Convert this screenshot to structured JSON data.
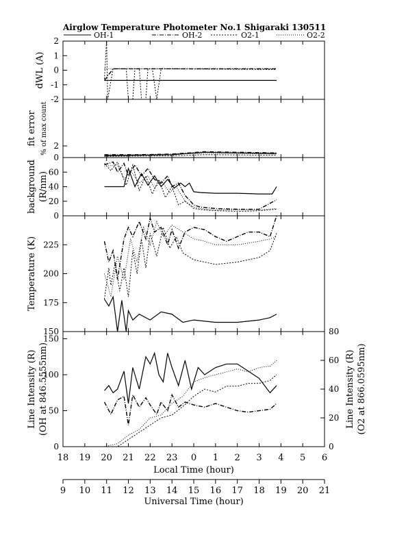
{
  "title": "Airglow Temperature Photometer No.1  Shigaraki   130511",
  "legend": [
    {
      "label": "OH-1",
      "dash": ""
    },
    {
      "label": "OH-2",
      "dash": "6,2,1,2"
    },
    {
      "label": "O2-1",
      "dash": "2,2"
    },
    {
      "label": "O2-2",
      "dash": "1,2"
    }
  ],
  "x_local": {
    "title": "Local Time (hour)",
    "ticks": [
      "18",
      "19",
      "20",
      "21",
      "22",
      "23",
      "0",
      "1",
      "2",
      "3",
      "4",
      "5",
      "6"
    ]
  },
  "x_universal": {
    "title": "Universal Time (hour)",
    "ticks": [
      "9",
      "10",
      "11",
      "12",
      "13",
      "14",
      "15",
      "16",
      "17",
      "18",
      "19",
      "20",
      "21"
    ]
  },
  "panels": [
    {
      "id": "dwl",
      "ylabel": "dWL (A)",
      "ylim": [
        -2,
        2
      ],
      "yticks": [
        "2",
        "1",
        "0",
        "-1",
        "-2"
      ]
    },
    {
      "id": "fiterr",
      "ylabel": "fit error",
      "ylabel2": "% of max count",
      "ylim": [
        0,
        10
      ],
      "yticks": [
        "2",
        "0"
      ]
    },
    {
      "id": "bg",
      "ylabel": "background",
      "ylabel2": "(R/nm)",
      "ylim": [
        0,
        80
      ],
      "yticks": [
        "60",
        "40",
        "20",
        "0"
      ]
    },
    {
      "id": "temp",
      "ylabel": "Temperature (K)",
      "ylim": [
        150,
        250
      ],
      "yticks": [
        "225",
        "200",
        "175",
        "150"
      ]
    },
    {
      "id": "int",
      "ylabel": "Line Intensity (R)",
      "ylabel2": "(OH at 846.5555nm)",
      "ylim": [
        0,
        160
      ],
      "yticks": [
        "150",
        "100",
        "50",
        "0"
      ],
      "ylabel_right": "Line Intensity (R)",
      "ylabel_right2": "(O2 at 866.0595nm)",
      "ylim_right": [
        0,
        80
      ],
      "yticks_right": [
        "80",
        "60",
        "40",
        "20",
        "0"
      ]
    }
  ],
  "chart_data": {
    "type": "line",
    "x_unit": "Local Time (hour)",
    "xlim": [
      18,
      30
    ],
    "series_names": [
      "OH-1",
      "OH-2",
      "O2-1",
      "O2-2"
    ],
    "dwl": {
      "OH-1": [
        [
          19.9,
          -0.7
        ],
        [
          27.8,
          -0.7
        ]
      ],
      "OH-2": [
        [
          19.9,
          -0.7
        ],
        [
          20.3,
          0.1
        ],
        [
          27.8,
          0.1
        ]
      ],
      "O2-1": [
        [
          19.9,
          -0.6
        ],
        [
          20.0,
          2
        ],
        [
          20.05,
          -2
        ],
        [
          20.3,
          0.1
        ],
        [
          20.9,
          0.1
        ],
        [
          21.0,
          -2
        ],
        [
          21.2,
          -2
        ],
        [
          21.3,
          0.1
        ],
        [
          21.5,
          0.1
        ],
        [
          21.6,
          -2
        ],
        [
          21.8,
          -2
        ],
        [
          21.9,
          0.1
        ],
        [
          22.1,
          0.1
        ],
        [
          22.3,
          -2
        ],
        [
          22.5,
          0.1
        ],
        [
          27.8,
          0.05
        ]
      ],
      "O2-2": [
        [
          19.9,
          0.1
        ],
        [
          27.8,
          0.1
        ]
      ]
    },
    "fiterr": {
      "OH-1": [
        [
          19.9,
          0.3
        ],
        [
          21.5,
          0.4
        ],
        [
          23.0,
          0.5
        ],
        [
          24.5,
          0.9
        ],
        [
          26.0,
          0.8
        ],
        [
          27.8,
          0.7
        ]
      ],
      "OH-2": [
        [
          19.9,
          0.5
        ],
        [
          21.5,
          0.5
        ],
        [
          23.0,
          0.6
        ],
        [
          24.5,
          1.0
        ],
        [
          26.0,
          0.9
        ],
        [
          27.8,
          0.8
        ]
      ],
      "O2-1": [
        [
          19.9,
          0.2
        ],
        [
          23.0,
          0.3
        ],
        [
          24.5,
          0.5
        ],
        [
          27.8,
          0.4
        ]
      ],
      "O2-2": [
        [
          19.9,
          0.4
        ],
        [
          22.0,
          0.5
        ],
        [
          24.0,
          0.7
        ],
        [
          26.0,
          0.7
        ],
        [
          27.8,
          0.6
        ]
      ]
    },
    "bg": {
      "OH-1": [
        [
          19.9,
          40
        ],
        [
          20.8,
          40
        ],
        [
          21.0,
          65
        ],
        [
          21.3,
          40
        ],
        [
          21.6,
          58
        ],
        [
          21.9,
          42
        ],
        [
          22.2,
          55
        ],
        [
          22.5,
          40
        ],
        [
          22.8,
          50
        ],
        [
          23.1,
          38
        ],
        [
          23.4,
          45
        ],
        [
          23.6,
          40
        ],
        [
          23.8,
          45
        ],
        [
          24.0,
          33
        ],
        [
          24.3,
          32
        ],
        [
          25,
          31
        ],
        [
          26,
          31
        ],
        [
          27,
          30
        ],
        [
          27.6,
          30
        ],
        [
          27.8,
          40
        ]
      ],
      "OH-2": [
        [
          19.9,
          70
        ],
        [
          20.3,
          74
        ],
        [
          20.5,
          60
        ],
        [
          20.8,
          72
        ],
        [
          21.0,
          55
        ],
        [
          21.3,
          70
        ],
        [
          21.6,
          55
        ],
        [
          21.9,
          65
        ],
        [
          22.2,
          50
        ],
        [
          22.5,
          45
        ],
        [
          22.8,
          55
        ],
        [
          23.0,
          40
        ],
        [
          23.3,
          45
        ],
        [
          23.6,
          28
        ],
        [
          24.0,
          15
        ],
        [
          24.3,
          12
        ],
        [
          25,
          10
        ],
        [
          26,
          9
        ],
        [
          27,
          9
        ],
        [
          27.8,
          22
        ]
      ],
      "O2-1": [
        [
          19.9,
          72
        ],
        [
          20.2,
          62
        ],
        [
          20.5,
          74
        ],
        [
          20.9,
          42
        ],
        [
          21.2,
          70
        ],
        [
          21.5,
          35
        ],
        [
          21.8,
          55
        ],
        [
          22.1,
          30
        ],
        [
          22.4,
          50
        ],
        [
          22.7,
          25
        ],
        [
          23.0,
          40
        ],
        [
          23.3,
          15
        ],
        [
          23.6,
          20
        ],
        [
          24.0,
          10
        ],
        [
          24.5,
          8
        ],
        [
          25,
          7
        ],
        [
          26,
          6
        ],
        [
          27,
          7
        ],
        [
          27.8,
          9
        ]
      ],
      "O2-2": [
        [
          19.9,
          68
        ],
        [
          20.5,
          70
        ],
        [
          20.8,
          50
        ],
        [
          21.1,
          62
        ],
        [
          21.5,
          45
        ],
        [
          21.9,
          55
        ],
        [
          22.2,
          38
        ],
        [
          22.5,
          48
        ],
        [
          22.9,
          32
        ],
        [
          23.2,
          40
        ],
        [
          23.6,
          20
        ],
        [
          24.0,
          12
        ],
        [
          24.5,
          9
        ],
        [
          25,
          8
        ],
        [
          26,
          8
        ],
        [
          27,
          8
        ],
        [
          27.8,
          10
        ]
      ]
    },
    "temp": {
      "OH-1": [
        [
          19.9,
          178
        ],
        [
          20.1,
          172
        ],
        [
          20.3,
          180
        ],
        [
          20.5,
          150
        ],
        [
          20.7,
          177
        ],
        [
          20.9,
          150
        ],
        [
          21.0,
          168
        ],
        [
          21.2,
          160
        ],
        [
          21.5,
          165
        ],
        [
          22.0,
          160
        ],
        [
          22.5,
          167
        ],
        [
          23.0,
          165
        ],
        [
          23.5,
          158
        ],
        [
          24.0,
          160
        ],
        [
          25.0,
          158
        ],
        [
          26.0,
          158
        ],
        [
          27.0,
          160
        ],
        [
          27.5,
          162
        ],
        [
          27.8,
          165
        ]
      ],
      "OH-2": [
        [
          19.9,
          228
        ],
        [
          20.1,
          210
        ],
        [
          20.3,
          220
        ],
        [
          20.5,
          195
        ],
        [
          20.8,
          230
        ],
        [
          21.0,
          240
        ],
        [
          21.2,
          232
        ],
        [
          21.5,
          245
        ],
        [
          21.8,
          230
        ],
        [
          22.0,
          248
        ],
        [
          22.2,
          236
        ],
        [
          22.5,
          240
        ],
        [
          22.8,
          225
        ],
        [
          23.0,
          238
        ],
        [
          23.3,
          222
        ],
        [
          23.6,
          236
        ],
        [
          24.0,
          240
        ],
        [
          24.5,
          238
        ],
        [
          25.0,
          232
        ],
        [
          25.5,
          228
        ],
        [
          26.0,
          232
        ],
        [
          26.5,
          236
        ],
        [
          27.0,
          236
        ],
        [
          27.5,
          232
        ],
        [
          27.8,
          250
        ]
      ],
      "O2-1": [
        [
          19.9,
          178
        ],
        [
          20.1,
          205
        ],
        [
          20.2,
          190
        ],
        [
          20.4,
          210
        ],
        [
          20.6,
          185
        ],
        [
          20.8,
          205
        ],
        [
          21.0,
          180
        ],
        [
          21.2,
          220
        ],
        [
          21.4,
          200
        ],
        [
          21.6,
          230
        ],
        [
          21.8,
          205
        ],
        [
          22.0,
          235
        ],
        [
          22.3,
          215
        ],
        [
          22.6,
          240
        ],
        [
          22.9,
          222
        ],
        [
          23.2,
          232
        ],
        [
          23.5,
          218
        ],
        [
          24.0,
          212
        ],
        [
          25.0,
          208
        ],
        [
          26.0,
          210
        ],
        [
          27.0,
          214
        ],
        [
          27.5,
          220
        ],
        [
          27.8,
          235
        ]
      ],
      "O2-2": [
        [
          19.9,
          200
        ],
        [
          20.2,
          180
        ],
        [
          20.5,
          215
        ],
        [
          20.8,
          195
        ],
        [
          21.1,
          230
        ],
        [
          21.4,
          210
        ],
        [
          21.7,
          240
        ],
        [
          22.0,
          225
        ],
        [
          22.3,
          245
        ],
        [
          22.6,
          232
        ],
        [
          23.0,
          242
        ],
        [
          23.5,
          236
        ],
        [
          24.0,
          230
        ],
        [
          24.5,
          228
        ],
        [
          25.0,
          225
        ],
        [
          26.0,
          225
        ],
        [
          27.0,
          228
        ],
        [
          27.5,
          230
        ],
        [
          27.8,
          232
        ]
      ]
    },
    "int": {
      "OH-1": [
        [
          19.9,
          78
        ],
        [
          20.1,
          85
        ],
        [
          20.3,
          75
        ],
        [
          20.5,
          80
        ],
        [
          20.8,
          105
        ],
        [
          21.0,
          60
        ],
        [
          21.2,
          110
        ],
        [
          21.5,
          80
        ],
        [
          21.8,
          125
        ],
        [
          22.0,
          115
        ],
        [
          22.2,
          130
        ],
        [
          22.4,
          100
        ],
        [
          22.6,
          90
        ],
        [
          22.8,
          130
        ],
        [
          23.0,
          110
        ],
        [
          23.3,
          85
        ],
        [
          23.6,
          120
        ],
        [
          23.9,
          80
        ],
        [
          24.2,
          110
        ],
        [
          24.5,
          100
        ],
        [
          25.0,
          110
        ],
        [
          25.5,
          115
        ],
        [
          26.0,
          115
        ],
        [
          26.5,
          105
        ],
        [
          27.0,
          95
        ],
        [
          27.5,
          75
        ],
        [
          27.8,
          85
        ]
      ],
      "OH-2": [
        [
          19.9,
          62
        ],
        [
          20.2,
          45
        ],
        [
          20.5,
          65
        ],
        [
          20.8,
          70
        ],
        [
          21.0,
          30
        ],
        [
          21.2,
          72
        ],
        [
          21.5,
          55
        ],
        [
          21.8,
          68
        ],
        [
          22.0,
          58
        ],
        [
          22.3,
          45
        ],
        [
          22.5,
          62
        ],
        [
          22.8,
          50
        ],
        [
          23.0,
          72
        ],
        [
          23.3,
          55
        ],
        [
          23.6,
          62
        ],
        [
          24.0,
          58
        ],
        [
          24.5,
          55
        ],
        [
          25.0,
          60
        ],
        [
          25.5,
          55
        ],
        [
          26.0,
          50
        ],
        [
          26.5,
          48
        ],
        [
          27.0,
          50
        ],
        [
          27.5,
          52
        ],
        [
          27.8,
          60
        ]
      ],
      "O2-1": [
        [
          19.9,
          0
        ],
        [
          20.5,
          0
        ],
        [
          21.0,
          5
        ],
        [
          21.5,
          10
        ],
        [
          22.0,
          15
        ],
        [
          22.5,
          20
        ],
        [
          23.0,
          22
        ],
        [
          23.5,
          28
        ],
        [
          24.0,
          35
        ],
        [
          24.5,
          40
        ],
        [
          25.0,
          38
        ],
        [
          25.5,
          42
        ],
        [
          26.0,
          42
        ],
        [
          26.5,
          44
        ],
        [
          27.0,
          44
        ],
        [
          27.5,
          46
        ],
        [
          27.8,
          50
        ]
      ],
      "O2-2": [
        [
          19.9,
          0
        ],
        [
          20.5,
          2
        ],
        [
          21.0,
          8
        ],
        [
          21.5,
          12
        ],
        [
          22.0,
          20
        ],
        [
          22.5,
          22
        ],
        [
          23.0,
          30
        ],
        [
          23.5,
          35
        ],
        [
          24.0,
          45
        ],
        [
          24.5,
          48
        ],
        [
          25.0,
          50
        ],
        [
          25.5,
          52
        ],
        [
          26.0,
          54
        ],
        [
          26.5,
          52
        ],
        [
          27.0,
          55
        ],
        [
          27.5,
          56
        ],
        [
          27.8,
          60
        ]
      ]
    }
  }
}
